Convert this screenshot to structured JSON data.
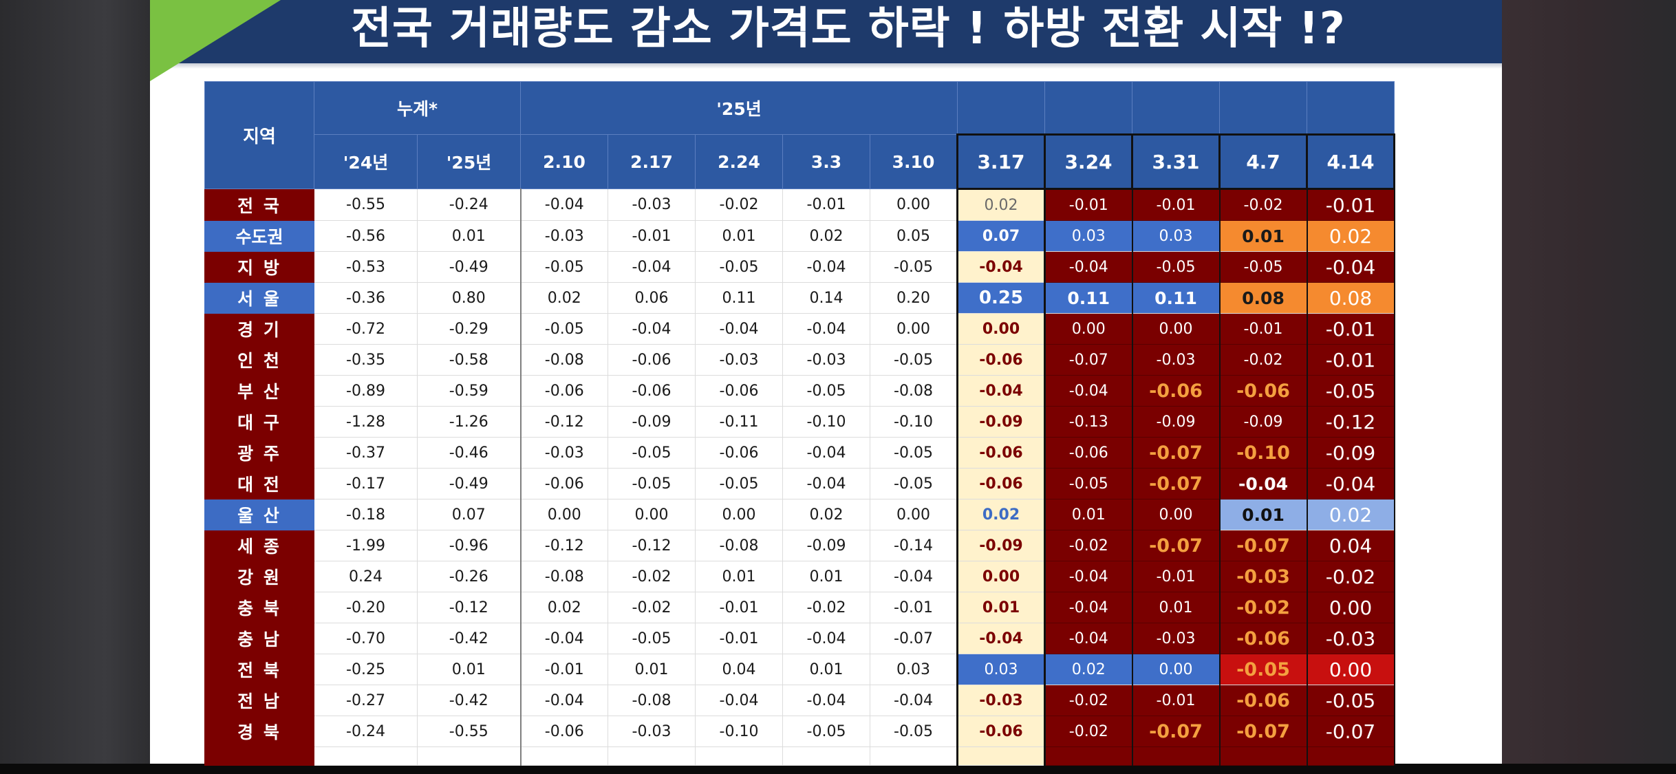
{
  "title": "전국 거래량도 감소 가격도 하락 ! 하방 전환 시작 !?",
  "colors": {
    "header_blue": "#2d59a2",
    "region_red": "#7b0000",
    "region_blue": "#3d6cc4",
    "title_bg": "#1e3a6b",
    "accent_green": "#7ac142",
    "highlight_yellow": "#fff2cc",
    "orange": "#f58a2f"
  },
  "table": {
    "header": {
      "region": "지역",
      "group_cum": "누계*",
      "group_25": "'25년",
      "cols": [
        "'24년",
        "'25년",
        "2.10",
        "2.17",
        "2.24",
        "3.3",
        "3.10",
        "3.17",
        "3.24",
        "3.31",
        "4.7",
        "4.14"
      ]
    },
    "rows": [
      {
        "region": "전 국",
        "values": [
          "-0.55",
          "-0.24",
          "-0.04",
          "-0.03",
          "-0.02",
          "-0.01",
          "0.00",
          "0.02",
          "-0.01",
          "-0.01",
          "-0.02",
          "-0.01"
        ]
      },
      {
        "region": "수도권",
        "values": [
          "-0.56",
          "0.01",
          "-0.03",
          "-0.01",
          "0.01",
          "0.02",
          "0.05",
          "0.07",
          "0.03",
          "0.03",
          "0.01",
          "0.02"
        ]
      },
      {
        "region": "지 방",
        "values": [
          "-0.53",
          "-0.49",
          "-0.05",
          "-0.04",
          "-0.05",
          "-0.04",
          "-0.05",
          "-0.04",
          "-0.04",
          "-0.05",
          "-0.05",
          "-0.04"
        ]
      },
      {
        "region": "서 울",
        "values": [
          "-0.36",
          "0.80",
          "0.02",
          "0.06",
          "0.11",
          "0.14",
          "0.20",
          "0.25",
          "0.11",
          "0.11",
          "0.08",
          "0.08"
        ]
      },
      {
        "region": "경 기",
        "values": [
          "-0.72",
          "-0.29",
          "-0.05",
          "-0.04",
          "-0.04",
          "-0.04",
          "0.00",
          "0.00",
          "0.00",
          "0.00",
          "-0.01",
          "-0.01"
        ]
      },
      {
        "region": "인 천",
        "values": [
          "-0.35",
          "-0.58",
          "-0.08",
          "-0.06",
          "-0.03",
          "-0.03",
          "-0.05",
          "-0.06",
          "-0.07",
          "-0.03",
          "-0.02",
          "-0.01"
        ]
      },
      {
        "region": "부 산",
        "values": [
          "-0.89",
          "-0.59",
          "-0.06",
          "-0.06",
          "-0.06",
          "-0.05",
          "-0.08",
          "-0.04",
          "-0.04",
          "-0.06",
          "-0.06",
          "-0.05"
        ]
      },
      {
        "region": "대 구",
        "values": [
          "-1.28",
          "-1.26",
          "-0.12",
          "-0.09",
          "-0.11",
          "-0.10",
          "-0.10",
          "-0.09",
          "-0.13",
          "-0.09",
          "-0.09",
          "-0.12"
        ]
      },
      {
        "region": "광 주",
        "values": [
          "-0.37",
          "-0.46",
          "-0.03",
          "-0.05",
          "-0.06",
          "-0.04",
          "-0.05",
          "-0.06",
          "-0.06",
          "-0.07",
          "-0.10",
          "-0.09"
        ]
      },
      {
        "region": "대 전",
        "values": [
          "-0.17",
          "-0.49",
          "-0.06",
          "-0.05",
          "-0.05",
          "-0.04",
          "-0.05",
          "-0.06",
          "-0.05",
          "-0.07",
          "-0.04",
          "-0.04"
        ]
      },
      {
        "region": "울 산",
        "values": [
          "-0.18",
          "0.07",
          "0.00",
          "0.00",
          "0.00",
          "0.02",
          "0.00",
          "0.02",
          "0.01",
          "0.00",
          "0.01",
          "0.02"
        ]
      },
      {
        "region": "세 종",
        "values": [
          "-1.99",
          "-0.96",
          "-0.12",
          "-0.12",
          "-0.08",
          "-0.09",
          "-0.14",
          "-0.09",
          "-0.02",
          "-0.07",
          "-0.07",
          "0.04"
        ]
      },
      {
        "region": "강 원",
        "values": [
          "0.24",
          "-0.26",
          "-0.08",
          "-0.02",
          "0.01",
          "0.01",
          "-0.04",
          "0.00",
          "-0.04",
          "-0.01",
          "-0.03",
          "-0.02"
        ]
      },
      {
        "region": "충 북",
        "values": [
          "-0.20",
          "-0.12",
          "0.02",
          "-0.02",
          "-0.01",
          "-0.02",
          "-0.01",
          "0.01",
          "-0.04",
          "0.01",
          "-0.02",
          "0.00"
        ]
      },
      {
        "region": "충 남",
        "values": [
          "-0.70",
          "-0.42",
          "-0.04",
          "-0.05",
          "-0.01",
          "-0.04",
          "-0.07",
          "-0.04",
          "-0.04",
          "-0.03",
          "-0.06",
          "-0.03"
        ]
      },
      {
        "region": "전 북",
        "values": [
          "-0.25",
          "0.01",
          "-0.01",
          "0.01",
          "0.04",
          "0.01",
          "0.03",
          "0.03",
          "0.02",
          "0.00",
          "-0.05",
          "0.00"
        ]
      },
      {
        "region": "전 남",
        "values": [
          "-0.27",
          "-0.42",
          "-0.04",
          "-0.08",
          "-0.04",
          "-0.04",
          "-0.04",
          "-0.03",
          "-0.02",
          "-0.01",
          "-0.06",
          "-0.05"
        ]
      },
      {
        "region": "경 북",
        "values": [
          "-0.24",
          "-0.55",
          "-0.06",
          "-0.03",
          "-0.10",
          "-0.05",
          "-0.05",
          "-0.06",
          "-0.02",
          "-0.07",
          "-0.07",
          "-0.07"
        ]
      }
    ]
  }
}
